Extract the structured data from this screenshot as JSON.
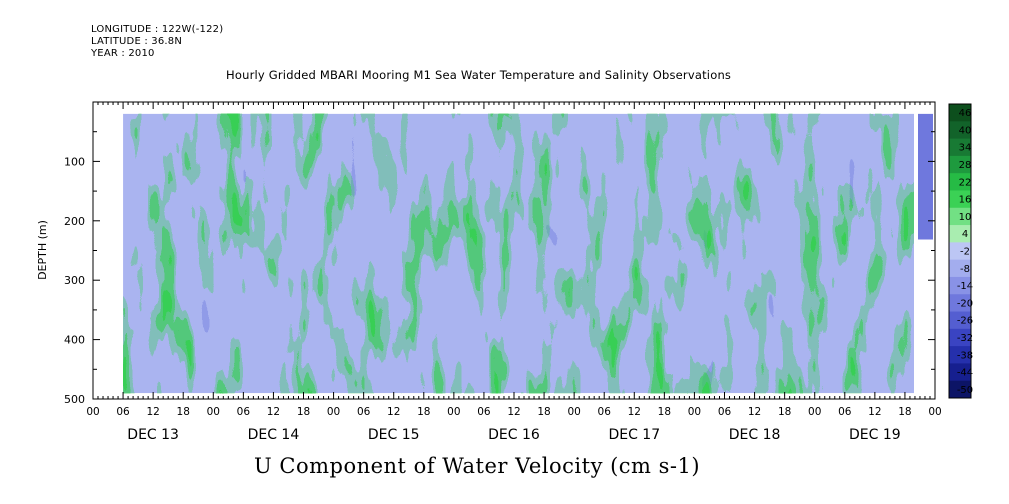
{
  "header": {
    "longitude": "LONGITUDE : 122W(-122)",
    "latitude": "LATITUDE : 36.8N",
    "year": "YEAR : 2010"
  },
  "chart_data": {
    "type": "heatmap",
    "title": "Hourly Gridded MBARI Mooring M1 Sea Water Temperature and Salinity Observations",
    "xlabel": "U Component of Water Velocity (cm s-1)",
    "ylabel": "DEPTH (m)",
    "y_reversed": true,
    "ylim": [
      500,
      0
    ],
    "y_ticks": [
      100,
      200,
      300,
      400,
      500
    ],
    "x_hour_ticks": [
      "00",
      "06",
      "12",
      "18",
      "00",
      "06",
      "12",
      "18",
      "00",
      "06",
      "12",
      "18",
      "00",
      "06",
      "12",
      "18",
      "00",
      "06",
      "12",
      "18",
      "00",
      "06",
      "12",
      "18",
      "00",
      "06",
      "12",
      "18",
      "00"
    ],
    "x_day_labels": [
      "DEC 13",
      "DEC 14",
      "DEC 15",
      "DEC 16",
      "DEC 17",
      "DEC 18",
      "DEC 19"
    ],
    "data_depth_range_m": [
      20,
      490
    ],
    "data_time_start_hour": 6,
    "colorbar": {
      "labels": [
        "46",
        "40",
        "34",
        "28",
        "22",
        "16",
        "10",
        "4",
        "-2",
        "-8",
        "-14",
        "-20",
        "-26",
        "-32",
        "-38",
        "-44",
        "-50"
      ],
      "colors": [
        "#0d4f1d",
        "#12632a",
        "#187a34",
        "#1e9a3e",
        "#26bb45",
        "#3bd155",
        "#72e084",
        "#a9edb0",
        "#bcc6f4",
        "#a3adee",
        "#8992e6",
        "#6f78dd",
        "#545ed1",
        "#3a44c2",
        "#2530ac",
        "#161f8f",
        "#0c1466"
      ]
    },
    "legend": "right (vertical colorbar)",
    "grid": false
  }
}
